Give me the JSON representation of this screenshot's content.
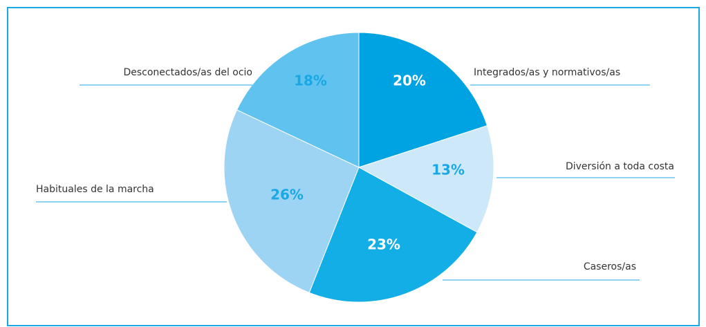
{
  "chart_data": {
    "type": "pie",
    "categories": [
      "Integrados/as y normativos/as",
      "Diversión a toda costa",
      "Caseros/as",
      "Habituales de la marcha",
      "Desconectados/as del ocio"
    ],
    "values": [
      20,
      13,
      23,
      26,
      18
    ],
    "value_labels": [
      "20%",
      "13%",
      "23%",
      "26%",
      "18%"
    ],
    "colors": [
      "#00a3e2",
      "#cde8f8",
      "#14aee6",
      "#9ed4f3",
      "#60c2ef"
    ],
    "label_colors": [
      "#ffffff",
      "#1aa8e4",
      "#ffffff",
      "#1aa8e4",
      "#1aa8e4"
    ]
  }
}
